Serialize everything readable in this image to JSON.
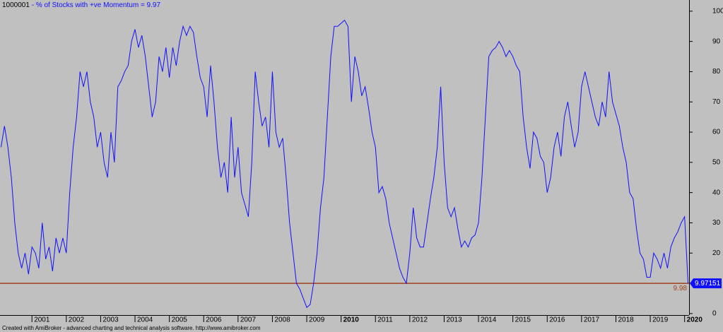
{
  "chart_data": {
    "type": "line",
    "title_id": "1000001",
    "title": "- % of Stocks with +ve Momentum = 9.97",
    "footer": "Created with AmiBroker - advanced charting and technical analysis software. http://www.amibroker.com",
    "color": "#1010ff",
    "xlim": [
      2000.07,
      2020.13
    ],
    "ylim": [
      -0.5,
      103.7
    ],
    "xticks": [
      2001,
      2002,
      2003,
      2004,
      2005,
      2006,
      2007,
      2008,
      2009,
      2010,
      2011,
      2012,
      2013,
      2014,
      2015,
      2016,
      2017,
      2018,
      2019,
      2020
    ],
    "bold_xticks": [
      2010,
      2020
    ],
    "yticks": [
      0,
      10,
      20,
      30,
      40,
      50,
      60,
      70,
      80,
      90,
      100
    ],
    "hline": {
      "value": 9.98,
      "color": "#a0401a"
    },
    "last_value_label": "9.97151",
    "x": [
      2000.1,
      2000.2,
      2000.3,
      2000.4,
      2000.5,
      2000.6,
      2000.7,
      2000.8,
      2000.9,
      2001.0,
      2001.1,
      2001.2,
      2001.3,
      2001.4,
      2001.5,
      2001.6,
      2001.7,
      2001.8,
      2001.9,
      2002.0,
      2002.1,
      2002.2,
      2002.3,
      2002.4,
      2002.5,
      2002.6,
      2002.7,
      2002.8,
      2002.9,
      2003.0,
      2003.1,
      2003.2,
      2003.3,
      2003.4,
      2003.5,
      2003.6,
      2003.7,
      2003.8,
      2003.9,
      2004.0,
      2004.1,
      2004.2,
      2004.3,
      2004.4,
      2004.5,
      2004.6,
      2004.7,
      2004.8,
      2004.9,
      2005.0,
      2005.1,
      2005.2,
      2005.3,
      2005.4,
      2005.5,
      2005.6,
      2005.7,
      2005.8,
      2005.9,
      2006.0,
      2006.1,
      2006.2,
      2006.3,
      2006.4,
      2006.5,
      2006.6,
      2006.7,
      2006.8,
      2006.9,
      2007.0,
      2007.1,
      2007.2,
      2007.3,
      2007.4,
      2007.5,
      2007.6,
      2007.7,
      2007.8,
      2007.9,
      2008.0,
      2008.1,
      2008.2,
      2008.3,
      2008.4,
      2008.5,
      2008.6,
      2008.7,
      2008.8,
      2008.9,
      2009.0,
      2009.1,
      2009.2,
      2009.3,
      2009.4,
      2009.5,
      2009.6,
      2009.7,
      2009.8,
      2009.9,
      2010.0,
      2010.1,
      2010.2,
      2010.3,
      2010.4,
      2010.5,
      2010.6,
      2010.7,
      2010.8,
      2010.9,
      2011.0,
      2011.1,
      2011.2,
      2011.3,
      2011.4,
      2011.5,
      2011.6,
      2011.7,
      2011.8,
      2011.9,
      2012.0,
      2012.1,
      2012.2,
      2012.3,
      2012.4,
      2012.5,
      2012.6,
      2012.7,
      2012.8,
      2012.9,
      2013.0,
      2013.1,
      2013.2,
      2013.3,
      2013.4,
      2013.5,
      2013.6,
      2013.7,
      2013.8,
      2013.9,
      2014.0,
      2014.1,
      2014.2,
      2014.3,
      2014.4,
      2014.5,
      2014.6,
      2014.7,
      2014.8,
      2014.9,
      2015.0,
      2015.1,
      2015.2,
      2015.3,
      2015.4,
      2015.5,
      2015.6,
      2015.7,
      2015.8,
      2015.9,
      2016.0,
      2016.1,
      2016.2,
      2016.3,
      2016.4,
      2016.5,
      2016.6,
      2016.7,
      2016.8,
      2016.9,
      2017.0,
      2017.1,
      2017.2,
      2017.3,
      2017.4,
      2017.5,
      2017.6,
      2017.7,
      2017.8,
      2017.9,
      2018.0,
      2018.1,
      2018.2,
      2018.3,
      2018.4,
      2018.5,
      2018.6,
      2018.7,
      2018.8,
      2018.9,
      2019.0,
      2019.1,
      2019.2,
      2019.3,
      2019.4,
      2019.5,
      2019.6,
      2019.7,
      2019.8,
      2019.9,
      2020.0,
      2020.1
    ],
    "values": [
      55,
      62,
      55,
      45,
      30,
      20,
      15,
      20,
      13,
      22,
      20,
      15,
      30,
      18,
      22,
      14,
      25,
      20,
      25,
      20,
      40,
      55,
      65,
      80,
      75,
      80,
      70,
      65,
      55,
      60,
      50,
      45,
      60,
      50,
      75,
      77,
      80,
      82,
      90,
      94,
      88,
      92,
      85,
      75,
      65,
      70,
      85,
      80,
      88,
      78,
      88,
      82,
      90,
      95,
      92,
      95,
      93,
      85,
      78,
      75,
      65,
      82,
      70,
      55,
      45,
      50,
      40,
      65,
      45,
      55,
      40,
      36,
      32,
      50,
      80,
      70,
      62,
      65,
      55,
      80,
      60,
      55,
      58,
      45,
      30,
      20,
      10,
      8,
      5,
      2,
      3,
      10,
      20,
      35,
      45,
      65,
      85,
      95,
      95,
      96,
      97,
      95,
      70,
      85,
      80,
      72,
      75,
      68,
      60,
      55,
      40,
      42,
      38,
      30,
      25,
      20,
      15,
      12,
      10,
      20,
      35,
      25,
      22,
      22,
      30,
      38,
      45,
      55,
      75,
      50,
      35,
      32,
      35,
      28,
      22,
      24,
      22,
      25,
      26,
      30,
      45,
      65,
      85,
      87,
      88,
      90,
      88,
      85,
      87,
      85,
      82,
      80,
      65,
      55,
      48,
      60,
      58,
      52,
      50,
      40,
      45,
      55,
      60,
      52,
      65,
      70,
      62,
      55,
      60,
      75,
      80,
      75,
      70,
      65,
      62,
      70,
      65,
      80,
      70,
      66,
      62,
      55,
      50,
      40,
      38,
      28,
      20,
      18,
      12,
      12,
      20,
      18,
      15,
      20,
      15,
      22,
      25,
      27,
      30,
      32,
      9.97
    ]
  }
}
